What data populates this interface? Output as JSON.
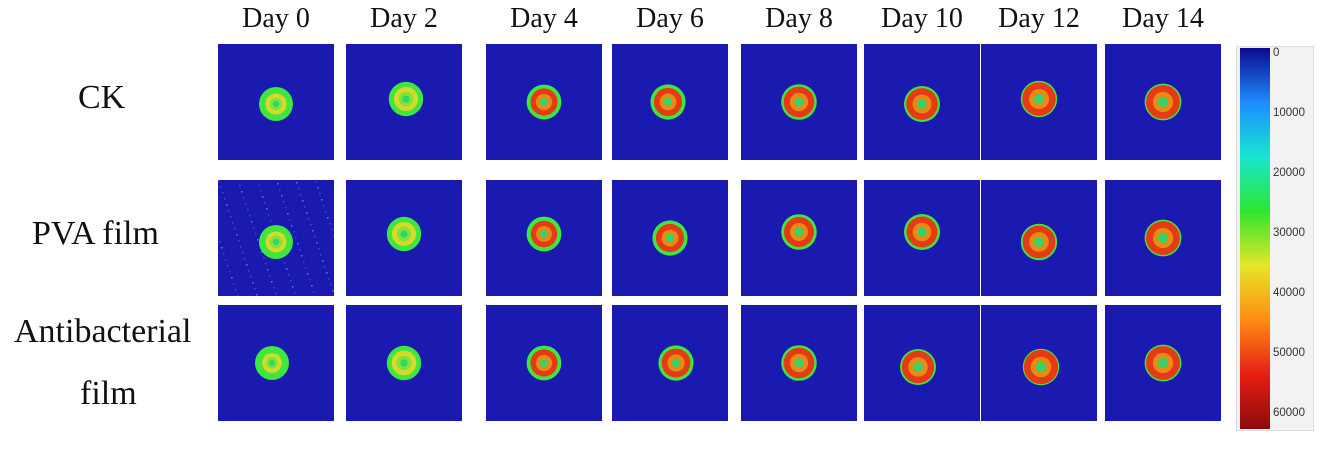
{
  "columns": [
    "Day 0",
    "Day 2",
    "Day 4",
    "Day 6",
    "Day 8",
    "Day 10",
    "Day 12",
    "Day 14"
  ],
  "rows": [
    {
      "label_lines": [
        "CK"
      ]
    },
    {
      "label_lines": [
        "PVA film"
      ]
    },
    {
      "label_lines": [
        "Antibacterial",
        "film"
      ]
    }
  ],
  "colorbar": {
    "ticks": [
      "0",
      "10000",
      "20000",
      "30000",
      "40000",
      "50000",
      "60000"
    ],
    "range": [
      0,
      60000
    ],
    "colors": [
      "#0a0a8c",
      "#1e8cff",
      "#19e6d2",
      "#2ee62e",
      "#e6e628",
      "#ff8c14",
      "#e61e14",
      "#8c0a0a"
    ]
  },
  "panel_background": "#1a1ab0"
}
